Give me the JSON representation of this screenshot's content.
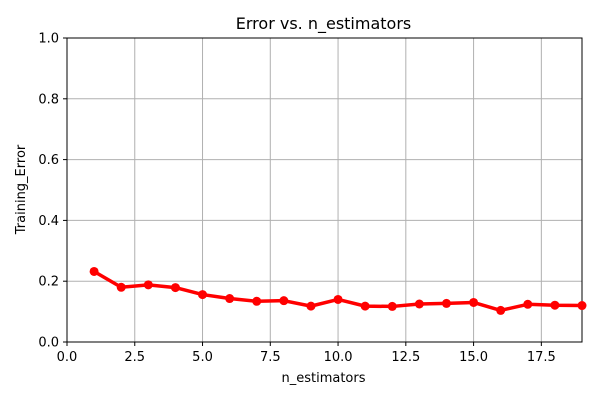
{
  "chart_data": {
    "type": "line",
    "title": "Error vs. n_estimators",
    "xlabel": "n_estimators",
    "ylabel": "Training_Error",
    "xlim": [
      0,
      19
    ],
    "ylim": [
      0,
      1
    ],
    "xticks": [
      0,
      2.5,
      5,
      7.5,
      10,
      12.5,
      15,
      17.5
    ],
    "xtick_labels": [
      "0.0",
      "2.5",
      "5.0",
      "7.5",
      "10.0",
      "12.5",
      "15.0",
      "17.5"
    ],
    "yticks": [
      0,
      0.2,
      0.4,
      0.6,
      0.8,
      1.0
    ],
    "ytick_labels": [
      "0.0",
      "0.2",
      "0.4",
      "0.6",
      "0.8",
      "1.0"
    ],
    "grid": true,
    "series": [
      {
        "color": "#ff0000",
        "marker": "circle",
        "x": [
          1,
          2,
          3,
          4,
          5,
          6,
          7,
          8,
          9,
          10,
          11,
          12,
          13,
          14,
          15,
          16,
          17,
          18,
          19
        ],
        "values": [
          0.232,
          0.18,
          0.188,
          0.179,
          0.156,
          0.143,
          0.134,
          0.136,
          0.118,
          0.14,
          0.118,
          0.117,
          0.125,
          0.127,
          0.13,
          0.104,
          0.124,
          0.121,
          0.12
        ]
      }
    ]
  }
}
